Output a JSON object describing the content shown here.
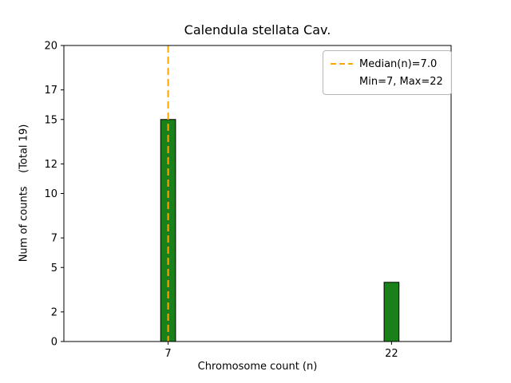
{
  "figure": {
    "background": "#ffffff"
  },
  "chart_data": {
    "type": "bar",
    "title": "Calendula stellata Cav.",
    "xlabel": "Chromosome count (n)",
    "ylabel": "Num of counts    (Total 19)",
    "categories": [
      7,
      22
    ],
    "values": [
      15,
      4
    ],
    "total": 19,
    "bar_color": "#1a8019",
    "bar_edge_color": "#000000",
    "bar_width": 1.0,
    "xlim": [
      0,
      26
    ],
    "ylim": [
      0,
      20
    ],
    "yticks": [
      0,
      2,
      5,
      7,
      10,
      12,
      15,
      17,
      20
    ],
    "ytick_labels": [
      "0",
      "2",
      "5",
      "7",
      "10",
      "12",
      "15",
      "17",
      "20"
    ],
    "xticks": [
      7,
      22
    ],
    "xtick_labels": [
      "7",
      "22"
    ],
    "grid": false,
    "median_line": {
      "x": 7.0,
      "color": "#ffa500",
      "style": "dashed",
      "width": 2
    },
    "legend": {
      "position": "upper right",
      "entries": [
        {
          "label": "Median(n)=7.0",
          "symbol": "dashed-line",
          "color": "#ffa500"
        },
        {
          "label": "Min=7, Max=22",
          "symbol": "none",
          "color": ""
        }
      ]
    }
  }
}
